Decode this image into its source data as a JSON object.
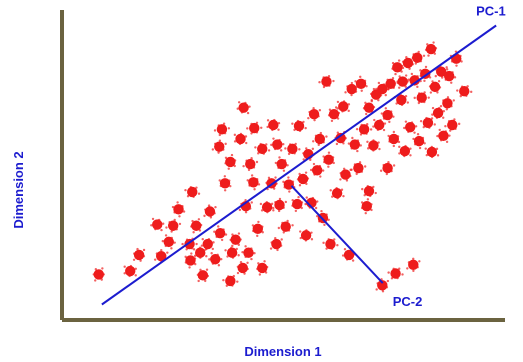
{
  "chart_data": {
    "type": "scatter",
    "title": "",
    "xlabel": "Dimension 1",
    "ylabel": "Dimension 2",
    "xlim": [
      0,
      100
    ],
    "ylim": [
      0,
      100
    ],
    "grid": false,
    "axis_color": "#6b6340",
    "point_color": "#ee1c1c",
    "line_color": "#1c1ccf",
    "points": [
      {
        "x": 8.3,
        "y": 14.7
      },
      {
        "x": 15.4,
        "y": 15.8
      },
      {
        "x": 17.4,
        "y": 21.0
      },
      {
        "x": 21.5,
        "y": 30.8
      },
      {
        "x": 22.4,
        "y": 20.6
      },
      {
        "x": 24.1,
        "y": 25.2
      },
      {
        "x": 25.1,
        "y": 30.4
      },
      {
        "x": 26.3,
        "y": 35.7
      },
      {
        "x": 28.8,
        "y": 24.5
      },
      {
        "x": 29.0,
        "y": 19.2
      },
      {
        "x": 29.4,
        "y": 41.3
      },
      {
        "x": 30.3,
        "y": 30.4
      },
      {
        "x": 31.2,
        "y": 21.7
      },
      {
        "x": 31.8,
        "y": 14.4
      },
      {
        "x": 32.9,
        "y": 24.5
      },
      {
        "x": 33.4,
        "y": 35.0
      },
      {
        "x": 34.6,
        "y": 19.6
      },
      {
        "x": 35.5,
        "y": 55.9
      },
      {
        "x": 35.7,
        "y": 28.0
      },
      {
        "x": 36.1,
        "y": 61.5
      },
      {
        "x": 36.8,
        "y": 44.1
      },
      {
        "x": 38.0,
        "y": 12.6
      },
      {
        "x": 38.0,
        "y": 51.0
      },
      {
        "x": 38.4,
        "y": 21.7
      },
      {
        "x": 39.2,
        "y": 25.9
      },
      {
        "x": 40.3,
        "y": 58.4
      },
      {
        "x": 40.8,
        "y": 16.8
      },
      {
        "x": 41.0,
        "y": 68.5
      },
      {
        "x": 41.5,
        "y": 36.7
      },
      {
        "x": 42.1,
        "y": 21.7
      },
      {
        "x": 42.5,
        "y": 50.3
      },
      {
        "x": 43.2,
        "y": 44.4
      },
      {
        "x": 43.4,
        "y": 61.9
      },
      {
        "x": 44.2,
        "y": 29.4
      },
      {
        "x": 45.2,
        "y": 55.2
      },
      {
        "x": 45.2,
        "y": 16.8
      },
      {
        "x": 46.3,
        "y": 36.4
      },
      {
        "x": 47.3,
        "y": 44.1
      },
      {
        "x": 47.7,
        "y": 62.9
      },
      {
        "x": 48.4,
        "y": 24.5
      },
      {
        "x": 48.6,
        "y": 56.6
      },
      {
        "x": 49.1,
        "y": 37.1
      },
      {
        "x": 49.6,
        "y": 50.3
      },
      {
        "x": 50.5,
        "y": 30.1
      },
      {
        "x": 51.2,
        "y": 43.7
      },
      {
        "x": 52.0,
        "y": 55.2
      },
      {
        "x": 53.1,
        "y": 37.4
      },
      {
        "x": 53.5,
        "y": 62.6
      },
      {
        "x": 54.4,
        "y": 45.5
      },
      {
        "x": 55.1,
        "y": 27.3
      },
      {
        "x": 55.6,
        "y": 53.5
      },
      {
        "x": 56.3,
        "y": 37.8
      },
      {
        "x": 56.9,
        "y": 66.4
      },
      {
        "x": 57.6,
        "y": 48.3
      },
      {
        "x": 58.2,
        "y": 58.4
      },
      {
        "x": 58.9,
        "y": 32.9
      },
      {
        "x": 59.7,
        "y": 76.9
      },
      {
        "x": 60.2,
        "y": 51.7
      },
      {
        "x": 60.6,
        "y": 24.5
      },
      {
        "x": 61.4,
        "y": 66.4
      },
      {
        "x": 62.1,
        "y": 40.9
      },
      {
        "x": 62.9,
        "y": 58.7
      },
      {
        "x": 63.5,
        "y": 68.9
      },
      {
        "x": 64.0,
        "y": 46.9
      },
      {
        "x": 64.8,
        "y": 21.0
      },
      {
        "x": 65.4,
        "y": 74.5
      },
      {
        "x": 66.1,
        "y": 56.6
      },
      {
        "x": 66.9,
        "y": 49.0
      },
      {
        "x": 67.5,
        "y": 76.2
      },
      {
        "x": 68.2,
        "y": 61.5
      },
      {
        "x": 68.8,
        "y": 36.7
      },
      {
        "x": 69.3,
        "y": 41.6
      },
      {
        "x": 69.3,
        "y": 68.5
      },
      {
        "x": 70.3,
        "y": 56.3
      },
      {
        "x": 70.9,
        "y": 72.7
      },
      {
        "x": 71.6,
        "y": 62.9
      },
      {
        "x": 72.3,
        "y": 11.2
      },
      {
        "x": 72.3,
        "y": 74.5
      },
      {
        "x": 73.5,
        "y": 49.0
      },
      {
        "x": 73.5,
        "y": 66.1
      },
      {
        "x": 74.2,
        "y": 76.2
      },
      {
        "x": 74.9,
        "y": 58.4
      },
      {
        "x": 75.3,
        "y": 15.0
      },
      {
        "x": 75.7,
        "y": 81.5
      },
      {
        "x": 76.6,
        "y": 71.0
      },
      {
        "x": 76.9,
        "y": 76.9
      },
      {
        "x": 77.4,
        "y": 54.5
      },
      {
        "x": 78.1,
        "y": 82.9
      },
      {
        "x": 78.6,
        "y": 62.2
      },
      {
        "x": 79.3,
        "y": 17.8
      },
      {
        "x": 79.6,
        "y": 77.3
      },
      {
        "x": 80.2,
        "y": 84.6
      },
      {
        "x": 80.6,
        "y": 57.7
      },
      {
        "x": 81.2,
        "y": 71.7
      },
      {
        "x": 82.0,
        "y": 79.4
      },
      {
        "x": 82.6,
        "y": 63.6
      },
      {
        "x": 83.3,
        "y": 87.4
      },
      {
        "x": 83.5,
        "y": 54.2
      },
      {
        "x": 84.2,
        "y": 75.2
      },
      {
        "x": 84.9,
        "y": 66.8
      },
      {
        "x": 85.6,
        "y": 80.1
      },
      {
        "x": 86.1,
        "y": 59.4
      },
      {
        "x": 87.0,
        "y": 69.9
      },
      {
        "x": 87.4,
        "y": 78.7
      },
      {
        "x": 88.1,
        "y": 62.9
      },
      {
        "x": 89.0,
        "y": 84.3
      },
      {
        "x": 90.8,
        "y": 73.8
      }
    ],
    "overlays": [
      {
        "name": "PC-1",
        "kind": "axis-line",
        "from": [
          9.0,
          5.0
        ],
        "to": [
          98.0,
          95.0
        ]
      },
      {
        "name": "PC-2",
        "kind": "axis-line",
        "from": [
          51.8,
          43.3
        ],
        "to": [
          72.4,
          11.9
        ]
      }
    ]
  }
}
